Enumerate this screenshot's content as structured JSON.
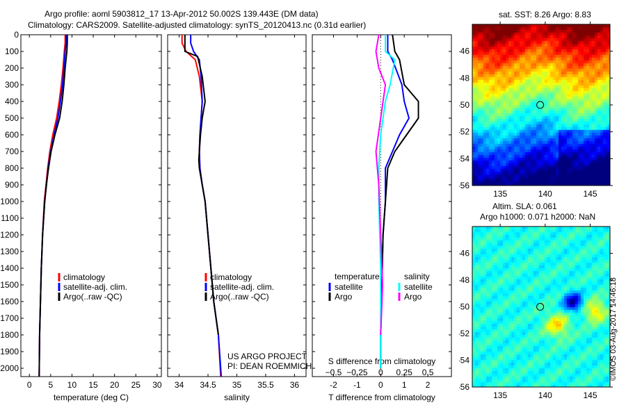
{
  "header": {
    "line1": "Argo profile: aoml 5903812_17 13-Apr-2012 50.002S 139.443E (DM data)",
    "line2": "Climatology: CARS2009. Satellite-adjusted climatology: synTS_20120413.nc (0.31d earlier)"
  },
  "colors": {
    "climatology": "#ff0000",
    "satellite": "#0000ff",
    "argo": "#000000",
    "sal_satellite": "#00ffff",
    "sal_argo": "#ff00ff"
  },
  "chart_data": [
    {
      "type": "line",
      "id": "temp",
      "xlabel": "temperature (deg C)",
      "xlim": [
        -2,
        31
      ],
      "ylim": [
        0,
        2050
      ],
      "yticks": [
        0,
        100,
        200,
        300,
        400,
        500,
        600,
        700,
        800,
        900,
        1000,
        1100,
        1200,
        1300,
        1400,
        1500,
        1600,
        1700,
        1800,
        1900,
        2000
      ],
      "xticks": [
        0,
        5,
        10,
        15,
        20,
        25,
        30
      ],
      "legend": [
        "climatology",
        "satellite-adj. clim.",
        "Argo(..raw -QC)"
      ],
      "series": [
        {
          "name": "climatology",
          "color": "#ff0000",
          "x": [
            8.4,
            8.4,
            8.2,
            7.9,
            7.5,
            7.0,
            6.4,
            5.5,
            4.8,
            4.3,
            3.9,
            3.5,
            3.1,
            2.8,
            2.6,
            2.4,
            2.3
          ],
          "y": [
            0,
            50,
            100,
            200,
            300,
            400,
            500,
            600,
            700,
            800,
            900,
            1000,
            1200,
            1400,
            1600,
            1800,
            2050
          ]
        },
        {
          "name": "satellite-adj. clim.",
          "color": "#0000ff",
          "x": [
            8.6,
            8.6,
            8.4,
            8.1,
            7.8,
            7.3,
            6.7,
            5.8,
            5.0,
            4.4,
            4.0,
            3.6,
            3.1,
            2.8,
            2.6,
            2.4,
            2.3
          ],
          "y": [
            0,
            50,
            100,
            200,
            300,
            400,
            500,
            600,
            700,
            800,
            900,
            1000,
            1200,
            1400,
            1600,
            1800,
            2050
          ]
        },
        {
          "name": "Argo",
          "color": "#000000",
          "x": [
            8.9,
            8.9,
            8.8,
            8.4,
            8.1,
            7.7,
            7.1,
            6.0,
            5.1,
            4.5,
            4.0,
            3.6,
            3.1,
            2.8,
            2.6,
            2.4,
            2.3
          ],
          "y": [
            0,
            50,
            100,
            200,
            300,
            400,
            500,
            600,
            700,
            800,
            900,
            1000,
            1200,
            1400,
            1600,
            1800,
            2050
          ]
        }
      ]
    },
    {
      "type": "line",
      "id": "sal",
      "xlabel": "salinity",
      "xlim": [
        33.8,
        36.2
      ],
      "ylim": [
        0,
        2050
      ],
      "xticks": [
        34,
        34.5,
        35,
        35.5,
        36
      ],
      "legend": [
        "climatology",
        "satellite-adj. clim.",
        "Argo(..raw -QC)"
      ],
      "annotation": [
        "US ARGO PROJECT",
        "PI: DEAN ROEMMICH"
      ],
      "series": [
        {
          "name": "climatology",
          "color": "#ff0000",
          "x": [
            34.05,
            34.05,
            34.12,
            34.28,
            34.35,
            34.4,
            34.38,
            34.36,
            34.35,
            34.36,
            34.4,
            34.45,
            34.5,
            34.55,
            34.6,
            34.68,
            34.72
          ],
          "y": [
            0,
            50,
            100,
            150,
            250,
            400,
            500,
            600,
            700,
            800,
            900,
            1000,
            1200,
            1400,
            1600,
            1800,
            2050
          ]
        },
        {
          "name": "satellite-adj. clim.",
          "color": "#0000ff",
          "x": [
            34.2,
            34.2,
            34.25,
            34.35,
            34.38,
            34.4,
            34.38,
            34.36,
            34.35,
            34.36,
            34.4,
            34.45,
            34.5,
            34.55,
            34.6,
            34.68,
            34.73
          ],
          "y": [
            0,
            50,
            100,
            150,
            250,
            400,
            500,
            600,
            700,
            800,
            900,
            1000,
            1200,
            1400,
            1600,
            1800,
            2050
          ]
        },
        {
          "name": "Argo",
          "color": "#000000",
          "x": [
            34.1,
            34.1,
            34.1,
            34.32,
            34.4,
            34.45,
            34.4,
            34.37,
            34.34,
            34.35,
            34.4,
            34.45,
            34.5,
            34.55,
            34.6,
            34.68
          ],
          "y": [
            0,
            50,
            100,
            130,
            250,
            400,
            500,
            600,
            750,
            800,
            900,
            1000,
            1200,
            1400,
            1600,
            1800
          ]
        }
      ]
    },
    {
      "type": "line",
      "id": "diff",
      "xlabel": "T difference from climatology",
      "x2label": "S difference from climatology",
      "xlim": [
        -2.9,
        3
      ],
      "ylim": [
        0,
        2050
      ],
      "xticks": [
        -2,
        -1,
        0,
        1,
        2
      ],
      "x2ticks": [
        -0.5,
        -0.25,
        0,
        0.25,
        0.5
      ],
      "legend_t": {
        "title": "temperature",
        "items": [
          "satellite",
          "Argo"
        ]
      },
      "legend_s": {
        "title": "salinity",
        "items": [
          "satellite",
          "Argo"
        ]
      },
      "series": [
        {
          "name": "T satellite",
          "color": "#0000ff",
          "x": [
            0.3,
            0.3,
            0.5,
            0.9,
            1.0,
            1.2,
            0.8,
            0.5,
            0.2,
            0.2,
            0.1,
            0.05,
            0,
            0
          ],
          "y": [
            0,
            100,
            150,
            300,
            400,
            500,
            600,
            700,
            800,
            1000,
            1200,
            1500,
            1800,
            2000
          ]
        },
        {
          "name": "T Argo",
          "color": "#000000",
          "x": [
            0.5,
            0.6,
            0.8,
            1.0,
            1.6,
            1.6,
            1.1,
            0.6,
            0.3,
            0.2,
            0.1,
            0.05,
            0,
            0
          ],
          "y": [
            0,
            100,
            150,
            300,
            400,
            500,
            600,
            700,
            800,
            1000,
            1200,
            1500,
            1800,
            2000
          ]
        },
        {
          "name": "S satellite",
          "color": "#00ffff",
          "x": [
            0.05,
            0.05,
            0.15,
            0.1,
            0.05,
            0.0,
            -0.02,
            -0.02,
            0.0,
            0.0,
            0.0
          ],
          "y": [
            0,
            100,
            150,
            300,
            400,
            600,
            800,
            1000,
            1400,
            1800,
            2000
          ]
        },
        {
          "name": "S Argo",
          "color": "#ff00ff",
          "x": [
            -0.02,
            -0.05,
            -0.02,
            0.05,
            0.0,
            -0.05,
            -0.02,
            0.0,
            0.02,
            0.0
          ],
          "y": [
            0,
            100,
            200,
            300,
            500,
            700,
            900,
            1200,
            1500,
            1800
          ]
        }
      ]
    }
  ],
  "maps": [
    {
      "title": "sat. SST: 8.26 Argo: 8.83",
      "xticks": [
        135,
        140,
        145
      ],
      "yticks": [
        -46,
        -48,
        -50,
        -52,
        -54,
        -56
      ],
      "lonlim": [
        131.9,
        147.2
      ],
      "latlim": [
        -44,
        -56
      ],
      "marker": [
        139.443,
        -50.002
      ]
    },
    {
      "title1": "Altim. SLA: 0.061",
      "title2": "Argo h1000: 0.071 h2000: NaN",
      "xticks": [
        135,
        140,
        145
      ],
      "yticks": [
        -46,
        -48,
        -50,
        -52,
        -54,
        -56
      ],
      "lonlim": [
        131.9,
        147.2
      ],
      "latlim": [
        -44,
        -56
      ],
      "marker": [
        139.443,
        -50.002
      ]
    }
  ],
  "footer": "©IMOS 03-Aug-2017 14:46:18"
}
